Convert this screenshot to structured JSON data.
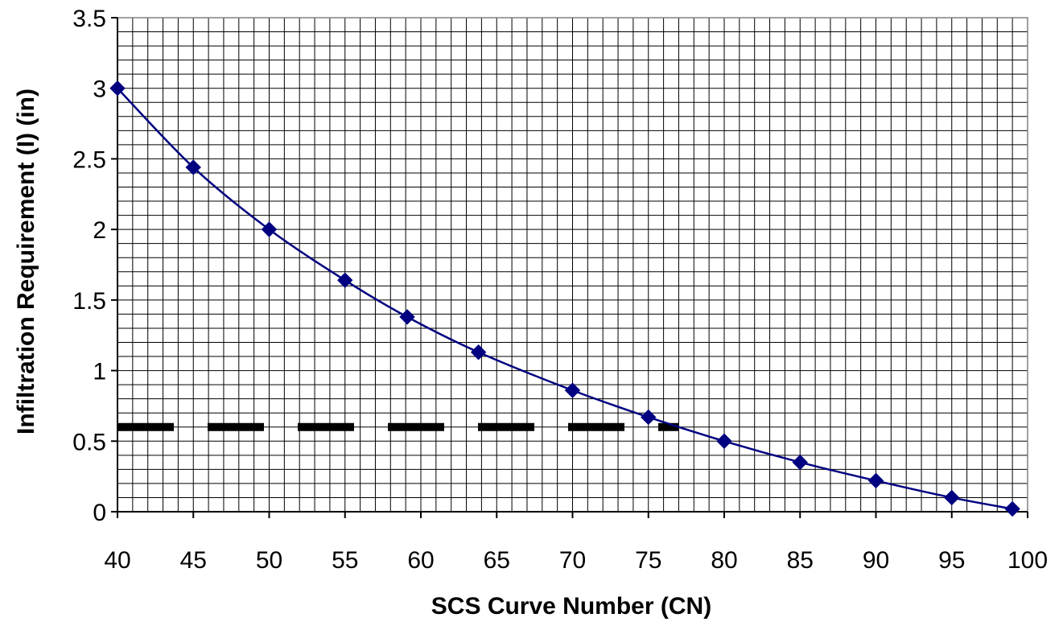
{
  "chart_data": {
    "type": "line",
    "title": "",
    "xlabel": "SCS Curve Number (CN)",
    "ylabel": "Infiltration Requirement (I) (in)",
    "xlim": [
      40,
      100
    ],
    "ylim": [
      0,
      3.5
    ],
    "x_ticks": [
      40,
      45,
      50,
      55,
      60,
      65,
      70,
      75,
      80,
      85,
      90,
      95,
      100
    ],
    "y_ticks": [
      0,
      0.5,
      1,
      1.5,
      2,
      2.5,
      3,
      3.5
    ],
    "x_tick_labels": [
      "40",
      "45",
      "50",
      "55",
      "60",
      "65",
      "70",
      "75",
      "80",
      "85",
      "90",
      "95",
      "100"
    ],
    "y_tick_labels": [
      "0",
      "0.5",
      "1",
      "1.5",
      "2",
      "2.5",
      "3",
      "3.5"
    ],
    "grid": true,
    "minor_grid_step_x": 1,
    "minor_grid_step_y": 0.1,
    "legend": "none",
    "series": [
      {
        "x": [
          40,
          45,
          50,
          55,
          59.1,
          63.8,
          70,
          75,
          80,
          85,
          90,
          95,
          99
        ],
        "y": [
          3.0,
          2.44,
          2.0,
          1.64,
          1.38,
          1.13,
          0.86,
          0.67,
          0.5,
          0.35,
          0.22,
          0.1,
          0.02
        ],
        "color": "#000080",
        "marker": "diamond",
        "line_style": "solid"
      }
    ],
    "reference_lines": [
      {
        "orientation": "horizontal",
        "y": 0.6,
        "x_range": [
          40,
          77
        ],
        "color": "#000000",
        "line_style": "dashed"
      }
    ]
  }
}
